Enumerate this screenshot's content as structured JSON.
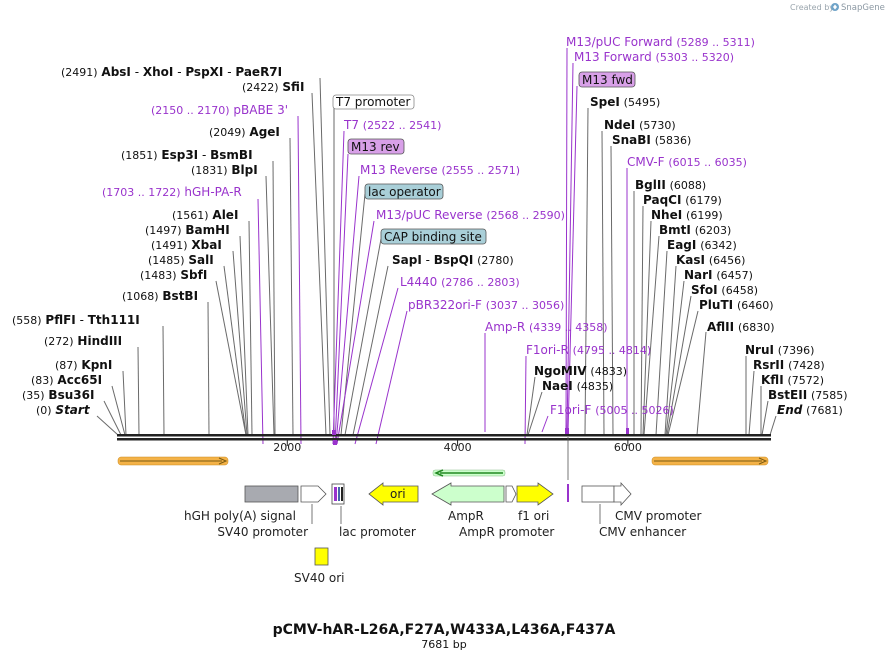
{
  "header": {
    "created_by": "Created by",
    "brand": "SnapGene",
    "colors": {
      "brand_text": "#9aa5ad",
      "brand_icon": "#6fa3c8"
    }
  },
  "map": {
    "title": "pCMV-hAR-L26A,F27A,W433A,L436A,F437A",
    "length_label": "7681 bp",
    "total_bp": 7681,
    "ticks": [
      {
        "bp": 2000,
        "label": "2000"
      },
      {
        "bp": 4000,
        "label": "4000"
      },
      {
        "bp": 6000,
        "label": "6000"
      }
    ]
  },
  "colors": {
    "enzyme_line": "#555555",
    "primer": "#9933cc",
    "box_purple": "#d8a0e8",
    "box_blue": "#a9cfd8",
    "orf_arrow": "#f4b247",
    "ori_yellow": "#ffff00",
    "ampr_green": "#ccffcc",
    "grey_feature": "#a8aab0",
    "backbone": "#222222",
    "green_arrow": "#228822"
  },
  "enzyme_labels": [
    {
      "pos": "(2491)",
      "names": [
        "AbsI",
        "XhoI",
        "PspXI",
        "PaeR7I"
      ]
    },
    {
      "pos": "(2422)",
      "names": [
        "SfiI"
      ]
    },
    {
      "pos": "(2049)",
      "names": [
        "AgeI"
      ]
    },
    {
      "pos": "(1851)",
      "names": [
        "Esp3I",
        "BsmBI"
      ]
    },
    {
      "pos": "(1831)",
      "names": [
        "BlpI"
      ]
    },
    {
      "pos": "(1561)",
      "names": [
        "AleI"
      ]
    },
    {
      "pos": "(1497)",
      "names": [
        "BamHI"
      ]
    },
    {
      "pos": "(1491)",
      "names": [
        "XbaI"
      ]
    },
    {
      "pos": "(1485)",
      "names": [
        "SalI"
      ]
    },
    {
      "pos": "(1483)",
      "names": [
        "SbfI"
      ]
    },
    {
      "pos": "(1068)",
      "names": [
        "BstBI"
      ]
    },
    {
      "pos": "(558)",
      "names": [
        "PflFI",
        "Tth111I"
      ]
    },
    {
      "pos": "(272)",
      "names": [
        "HindIII"
      ]
    },
    {
      "pos": "(87)",
      "names": [
        "KpnI"
      ]
    },
    {
      "pos": "(83)",
      "names": [
        "Acc65I"
      ]
    },
    {
      "pos": "(35)",
      "names": [
        "Bsu36I"
      ]
    },
    {
      "pos": "(0)",
      "names": [
        "Start"
      ]
    },
    {
      "pos": "(2780)",
      "names": [
        "SapI",
        "BspQI"
      ]
    },
    {
      "pos": "(5495)",
      "names": [
        "SpeI"
      ]
    },
    {
      "pos": "(5730)",
      "names": [
        "NdeI"
      ]
    },
    {
      "pos": "(5836)",
      "names": [
        "SnaBI"
      ]
    },
    {
      "pos": "(6088)",
      "names": [
        "BglII"
      ]
    },
    {
      "pos": "(6179)",
      "names": [
        "PaqCI"
      ]
    },
    {
      "pos": "(6199)",
      "names": [
        "NheI"
      ]
    },
    {
      "pos": "(6203)",
      "names": [
        "BmtI"
      ]
    },
    {
      "pos": "(6342)",
      "names": [
        "EagI"
      ]
    },
    {
      "pos": "(6456)",
      "names": [
        "KasI"
      ]
    },
    {
      "pos": "(6457)",
      "names": [
        "NarI"
      ]
    },
    {
      "pos": "(6458)",
      "names": [
        "SfoI"
      ]
    },
    {
      "pos": "(6460)",
      "names": [
        "PluTI"
      ]
    },
    {
      "pos": "(6830)",
      "names": [
        "AflII"
      ]
    },
    {
      "pos": "(4833)",
      "names": [
        "NgoMIV"
      ]
    },
    {
      "pos": "(4835)",
      "names": [
        "NaeI"
      ]
    },
    {
      "pos": "(7396)",
      "names": [
        "NruI"
      ]
    },
    {
      "pos": "(7428)",
      "names": [
        "RsrII"
      ]
    },
    {
      "pos": "(7572)",
      "names": [
        "KflI"
      ]
    },
    {
      "pos": "(7585)",
      "names": [
        "BstEII"
      ]
    },
    {
      "pos": "(7681)",
      "names": [
        "End"
      ]
    }
  ],
  "primers": [
    {
      "name": "pBABE 3'",
      "range": "(2150 .. 2170)"
    },
    {
      "name": "hGH-PA-R",
      "range": "(1703 .. 1722)"
    },
    {
      "name": "T7",
      "range": "(2522 .. 2541)"
    },
    {
      "name": "M13 Reverse",
      "range": "(2555 .. 2571)"
    },
    {
      "name": "M13/pUC Reverse",
      "range": "(2568 .. 2590)"
    },
    {
      "name": "L4440",
      "range": "(2786 .. 2803)"
    },
    {
      "name": "pBR322ori-F",
      "range": "(3037 .. 3056)"
    },
    {
      "name": "Amp-R",
      "range": "(4339 .. 4358)"
    },
    {
      "name": "F1ori-R",
      "range": "(4795 .. 4814)"
    },
    {
      "name": "F1ori-F",
      "range": "(5005 .. 5026)"
    },
    {
      "name": "M13/pUC Forward",
      "range": "(5289 .. 5311)"
    },
    {
      "name": "M13 Forward",
      "range": "(5303 .. 5320)"
    },
    {
      "name": "CMV-F",
      "range": "(6015 .. 6035)"
    }
  ],
  "boxed_features": [
    {
      "name": "T7 promoter"
    },
    {
      "name": "M13 rev"
    },
    {
      "name": "lac operator"
    },
    {
      "name": "CAP binding site"
    },
    {
      "name": "M13 fwd"
    }
  ],
  "feature_labels": {
    "hgh_polya": "hGH poly(A) signal",
    "sv40_promoter": "SV40 promoter",
    "lac_promoter": "lac promoter",
    "sv40_ori": "SV40 ori",
    "ori": "ori",
    "ampr": "AmpR",
    "ampr_promoter": "AmpR promoter",
    "f1_ori": "f1 ori",
    "cmv_promoter": "CMV promoter",
    "cmv_enhancer": "CMV enhancer"
  }
}
